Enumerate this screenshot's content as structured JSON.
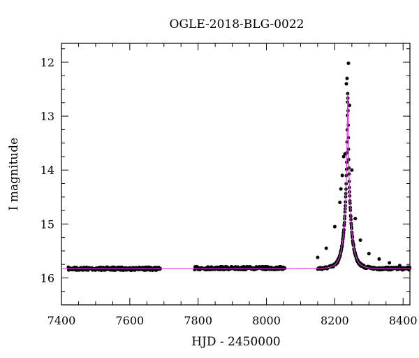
{
  "chart_data": {
    "type": "scatter",
    "title": "OGLE-2018-BLG-0022",
    "xlabel": "HJD - 2450000",
    "ylabel": "I magnitude",
    "xlim": [
      7400,
      8420
    ],
    "ylim": [
      16.5,
      11.65
    ],
    "y_inverted": true,
    "grid": false,
    "legend": "none",
    "x_ticks_labeled": [
      7400,
      7600,
      7800,
      8000,
      8200,
      8400
    ],
    "y_ticks_labeled": [
      12,
      13,
      14,
      15,
      16
    ],
    "x_tick_labels": [
      "7400",
      "7600",
      "7800",
      "8000",
      "8200",
      "8400"
    ],
    "y_tick_labels": [
      "12",
      "13",
      "14",
      "15",
      "16"
    ],
    "colors": {
      "points": "#000000",
      "model": "#e033e0",
      "axes": "#000000"
    },
    "series": [
      {
        "kind": "points",
        "segments": [
          {
            "x_range": [
              7420,
              7690
            ],
            "baseline": 15.83
          },
          {
            "x_range": [
              7790,
              8055
            ],
            "baseline": 15.82
          },
          {
            "x_range": [
              8150,
              8420
            ],
            "follows": "model"
          }
        ],
        "sample_points": [
          {
            "x": 8150,
            "y": 15.62
          },
          {
            "x": 8175,
            "y": 15.45
          },
          {
            "x": 8200,
            "y": 15.05
          },
          {
            "x": 8215,
            "y": 14.6
          },
          {
            "x": 8218,
            "y": 14.35
          },
          {
            "x": 8222,
            "y": 14.1
          },
          {
            "x": 8226,
            "y": 13.75
          },
          {
            "x": 8230,
            "y": 13.7
          },
          {
            "x": 8234,
            "y": 12.4
          },
          {
            "x": 8236,
            "y": 12.3
          },
          {
            "x": 8240,
            "y": 12.02
          },
          {
            "x": 8243,
            "y": 12.8
          },
          {
            "x": 8250,
            "y": 14.0
          },
          {
            "x": 8260,
            "y": 14.9
          },
          {
            "x": 8275,
            "y": 15.3
          },
          {
            "x": 8300,
            "y": 15.55
          },
          {
            "x": 8330,
            "y": 15.65
          },
          {
            "x": 8360,
            "y": 15.72
          },
          {
            "x": 8390,
            "y": 15.77
          },
          {
            "x": 8415,
            "y": 15.8
          }
        ]
      },
      {
        "kind": "model",
        "baseline": 15.83,
        "peak_x": 8238,
        "peak_y": 12.58,
        "time_scale": 20
      }
    ]
  }
}
